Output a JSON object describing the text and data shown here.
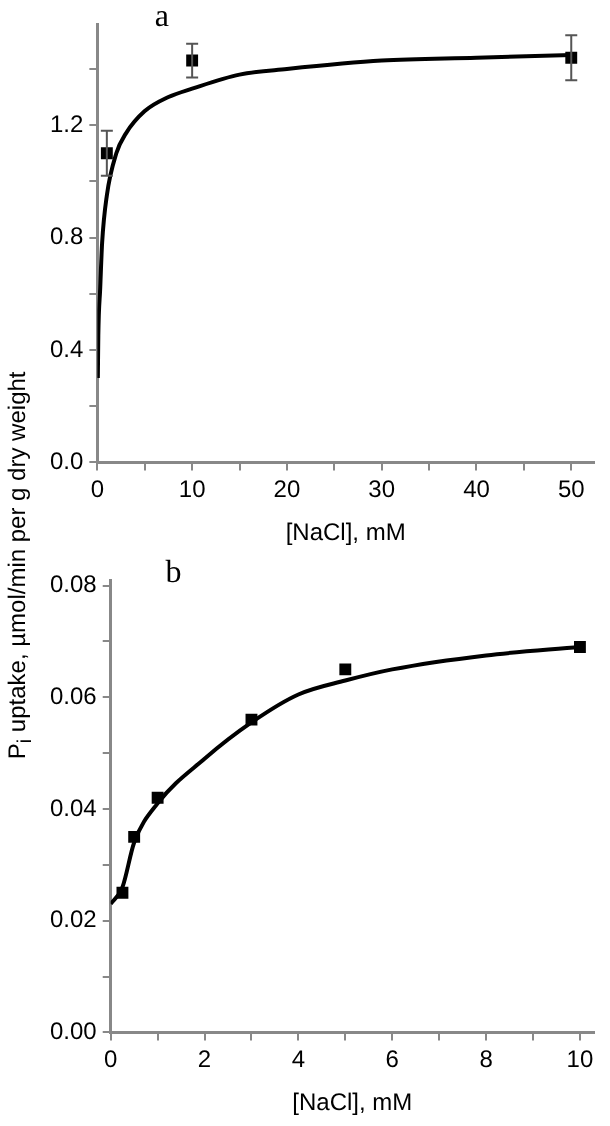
{
  "chart_data": [
    {
      "type": "scatter",
      "title": "a",
      "xlabel": "[NaCl], mM",
      "xlim": [
        0,
        52.4
      ],
      "xticks": [
        0,
        {
          "value": 5,
          "label": null
        },
        10,
        {
          "value": 15,
          "label": null
        },
        20,
        {
          "value": 25,
          "label": null
        },
        30,
        {
          "value": 35,
          "label": null
        },
        40,
        {
          "value": 45,
          "label": null
        },
        50
      ],
      "ylim": [
        0,
        1.56
      ],
      "yticks": [
        {
          "value": 0,
          "label": "0.0"
        },
        {
          "value": 0.2,
          "label": null
        },
        0.4,
        {
          "value": 0.6,
          "label": null
        },
        0.8,
        {
          "value": 1,
          "label": null
        },
        1.2,
        {
          "value": 1.4,
          "label": null
        }
      ],
      "grid": false,
      "legend": false,
      "series": [
        {
          "type": "line",
          "color": "#000000",
          "marker": "none",
          "line_style": "solid",
          "x": [
            0.05,
            0.1,
            0.3,
            0.5,
            1,
            2,
            3,
            5,
            7.5,
            10,
            15,
            20,
            30,
            40,
            50
          ],
          "values": [
            0.3,
            0.45,
            0.62,
            0.78,
            0.95,
            1.1,
            1.17,
            1.25,
            1.3,
            1.33,
            1.38,
            1.4,
            1.43,
            1.44,
            1.45
          ]
        },
        {
          "type": "scatter",
          "color": "#000000",
          "marker": "square",
          "x": [
            1,
            10,
            50
          ],
          "values": [
            1.1,
            1.43,
            1.44
          ],
          "errors": [
            0.08,
            0.06,
            0.08
          ]
        }
      ]
    },
    {
      "type": "scatter",
      "title": "b",
      "xlabel": "[NaCl], mM",
      "ylabel": "P$_{i}$ uptake, µmol/min per g dry weight",
      "xlim": [
        0,
        10.3
      ],
      "xticks": [
        0,
        {
          "value": 1,
          "label": null
        },
        2,
        {
          "value": 3,
          "label": null
        },
        4,
        {
          "value": 5,
          "label": null
        },
        6,
        {
          "value": 7,
          "label": null
        },
        8,
        {
          "value": 9,
          "label": null
        },
        10
      ],
      "ylim": [
        0,
        0.081
      ],
      "yticks": [
        {
          "value": 0,
          "label": "0.00"
        },
        {
          "value": 0.01,
          "label": null
        },
        0.02,
        {
          "value": 0.03,
          "label": null
        },
        0.04,
        {
          "value": 0.05,
          "label": null
        },
        0.06,
        {
          "value": 0.07,
          "label": null
        },
        0.08
      ],
      "grid": false,
      "legend": false,
      "series": [
        {
          "type": "line",
          "color": "#000000",
          "marker": "none",
          "line_style": "solid",
          "x": [
            0,
            0.25,
            0.5,
            1,
            2,
            3,
            4,
            5,
            6,
            8,
            10
          ],
          "values": [
            0.023,
            0.026,
            0.034,
            0.041,
            0.049,
            0.0555,
            0.0605,
            0.063,
            0.065,
            0.0675,
            0.069
          ]
        },
        {
          "type": "scatter",
          "color": "#000000",
          "marker": "square",
          "x": [
            0.25,
            0.5,
            1,
            3,
            5,
            10
          ],
          "values": [
            0.025,
            0.035,
            0.042,
            0.056,
            0.065,
            0.069
          ]
        }
      ]
    }
  ]
}
